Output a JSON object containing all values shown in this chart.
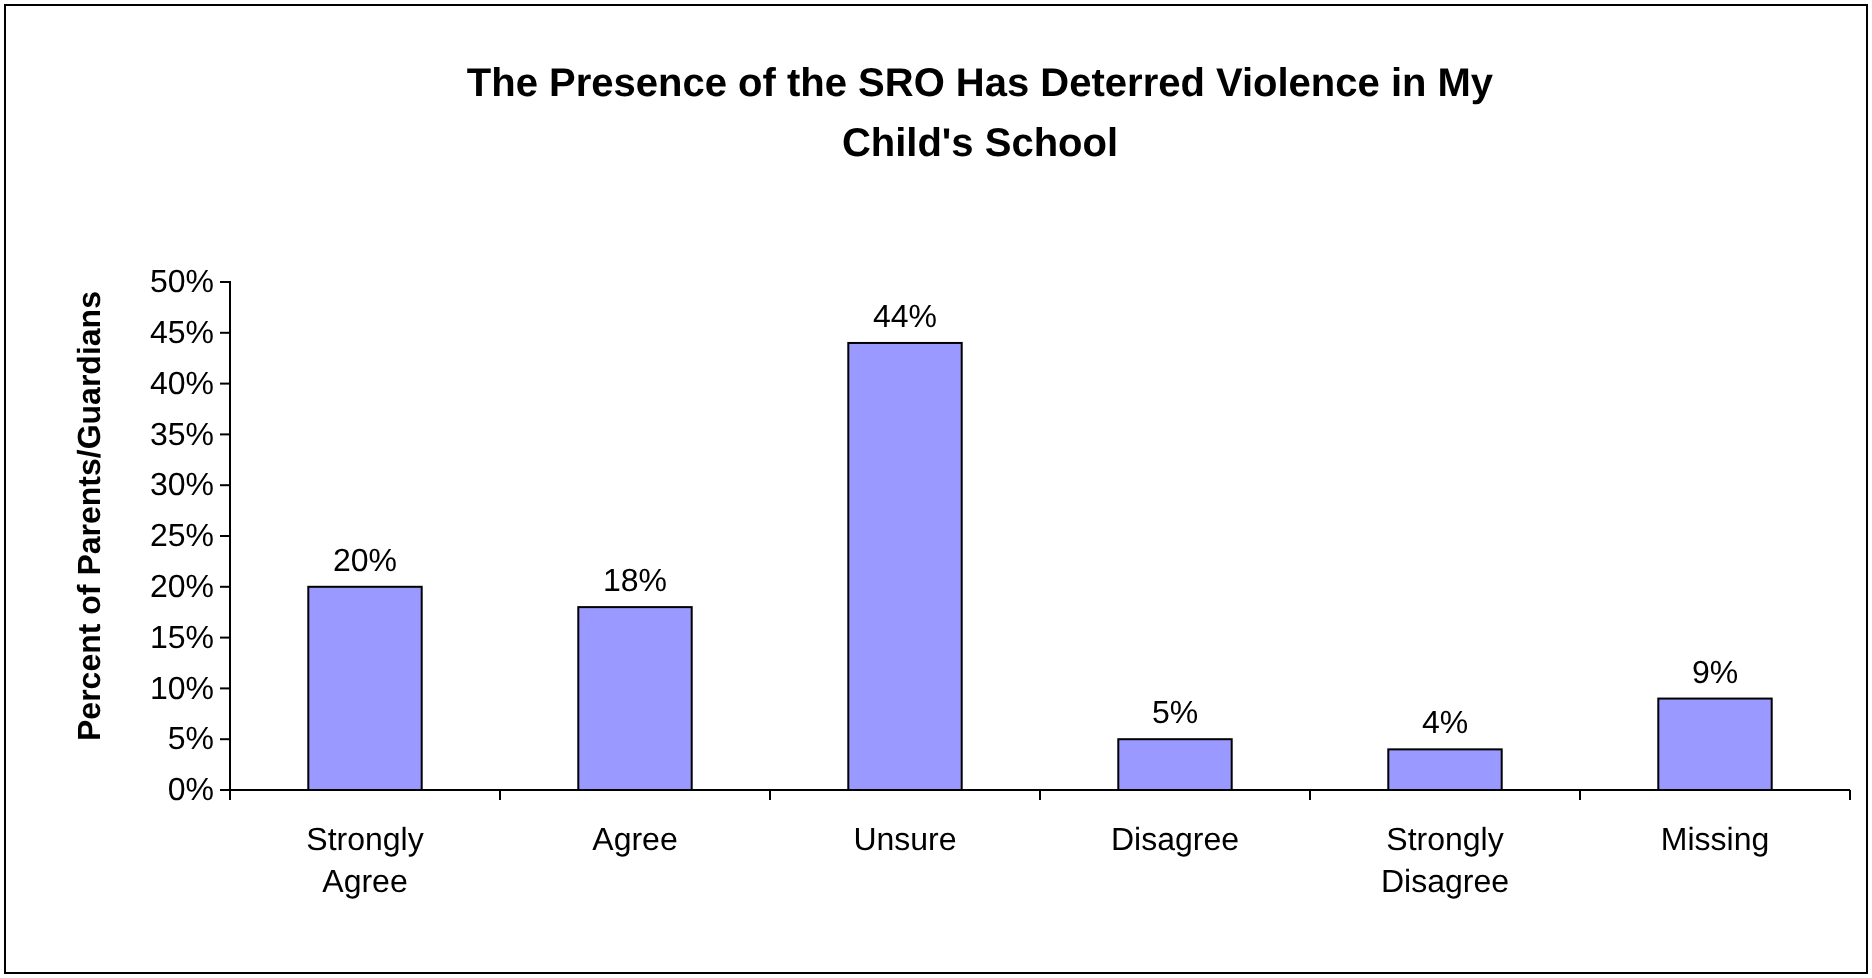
{
  "chart_data": {
    "type": "bar",
    "title": "The Presence of the SRO Has Deterred Violence in My Child's School",
    "ylabel": "Percent of Parents/Guardians",
    "categories": [
      "Strongly Agree",
      "Agree",
      "Unsure",
      "Disagree",
      "Strongly Disagree",
      "Missing"
    ],
    "values": [
      20,
      18,
      44,
      5,
      4,
      9
    ],
    "value_labels": [
      "20%",
      "18%",
      "44%",
      "5%",
      "4%",
      "9%"
    ],
    "color": "#9999ff",
    "ylim": [
      0,
      50
    ],
    "yticks": [
      {
        "value": 0,
        "label": "0%"
      },
      {
        "value": 5,
        "label": "5%"
      },
      {
        "value": 10,
        "label": "10%"
      },
      {
        "value": 15,
        "label": "15%"
      },
      {
        "value": 20,
        "label": "20%"
      },
      {
        "value": 25,
        "label": "25%"
      },
      {
        "value": 30,
        "label": "30%"
      },
      {
        "value": 35,
        "label": "35%"
      },
      {
        "value": 40,
        "label": "40%"
      },
      {
        "value": 45,
        "label": "45%"
      },
      {
        "value": 50,
        "label": "50%"
      }
    ],
    "grid": false
  }
}
